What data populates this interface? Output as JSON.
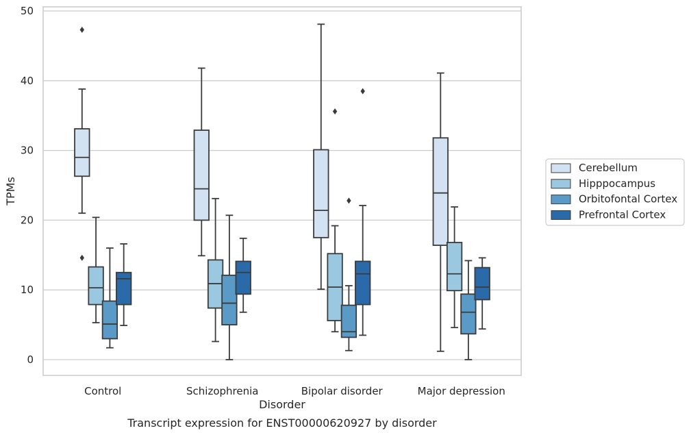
{
  "chart_data": {
    "type": "box",
    "title": "Transcript expression for ENST00000620927 by disorder",
    "xlabel": "Disorder",
    "ylabel": "TPMs",
    "ylim": [
      -2.3,
      50.5
    ],
    "yticks": [
      0,
      10,
      20,
      30,
      40,
      50
    ],
    "grid": "horizontal",
    "legend_position": "right",
    "categories": [
      "Control",
      "Schizophrenia",
      "Bipolar disorder",
      "Major depression"
    ],
    "series": [
      {
        "name": "Cerebellum",
        "color": "#d2e2f2",
        "boxes": [
          {
            "whislo": 21.0,
            "q1": 26.3,
            "med": 29.0,
            "q3": 33.1,
            "whishi": 38.8,
            "fliers": [
              47.3,
              14.6
            ]
          },
          {
            "whislo": 14.9,
            "q1": 20.0,
            "med": 24.5,
            "q3": 32.9,
            "whishi": 41.8,
            "fliers": []
          },
          {
            "whislo": 10.1,
            "q1": 17.5,
            "med": 21.4,
            "q3": 30.1,
            "whishi": 48.1,
            "fliers": []
          },
          {
            "whislo": 1.2,
            "q1": 16.4,
            "med": 23.9,
            "q3": 31.8,
            "whishi": 41.1,
            "fliers": []
          }
        ]
      },
      {
        "name": "Hipppocampus",
        "color": "#9ac8e0",
        "boxes": [
          {
            "whislo": 5.3,
            "q1": 7.9,
            "med": 10.3,
            "q3": 13.3,
            "whishi": 20.4,
            "fliers": []
          },
          {
            "whislo": 2.6,
            "q1": 7.4,
            "med": 10.9,
            "q3": 14.3,
            "whishi": 23.1,
            "fliers": []
          },
          {
            "whislo": 4.0,
            "q1": 5.6,
            "med": 10.4,
            "q3": 15.2,
            "whishi": 19.2,
            "fliers": [
              35.6
            ]
          },
          {
            "whislo": 4.6,
            "q1": 9.9,
            "med": 12.3,
            "q3": 16.8,
            "whishi": 21.9,
            "fliers": []
          }
        ]
      },
      {
        "name": "Orbitofontal Cortex",
        "color": "#5a9ac6",
        "boxes": [
          {
            "whislo": 1.7,
            "q1": 3.0,
            "med": 5.1,
            "q3": 8.4,
            "whishi": 16.0,
            "fliers": []
          },
          {
            "whislo": 0.0,
            "q1": 5.0,
            "med": 8.1,
            "q3": 12.1,
            "whishi": 20.7,
            "fliers": []
          },
          {
            "whislo": 1.3,
            "q1": 3.2,
            "med": 4.0,
            "q3": 7.8,
            "whishi": 10.6,
            "fliers": [
              22.8
            ]
          },
          {
            "whislo": 0.0,
            "q1": 3.7,
            "med": 6.8,
            "q3": 9.4,
            "whishi": 14.2,
            "fliers": []
          }
        ]
      },
      {
        "name": "Prefrontal Cortex",
        "color": "#2b6aa8",
        "boxes": [
          {
            "whislo": 4.9,
            "q1": 7.9,
            "med": 11.6,
            "q3": 12.5,
            "whishi": 16.6,
            "fliers": []
          },
          {
            "whislo": 6.8,
            "q1": 9.4,
            "med": 12.5,
            "q3": 14.1,
            "whishi": 17.4,
            "fliers": []
          },
          {
            "whislo": 3.5,
            "q1": 7.9,
            "med": 12.3,
            "q3": 14.1,
            "whishi": 22.1,
            "fliers": [
              38.5
            ]
          },
          {
            "whislo": 4.4,
            "q1": 8.6,
            "med": 10.4,
            "q3": 13.2,
            "whishi": 14.6,
            "fliers": []
          }
        ]
      }
    ]
  }
}
